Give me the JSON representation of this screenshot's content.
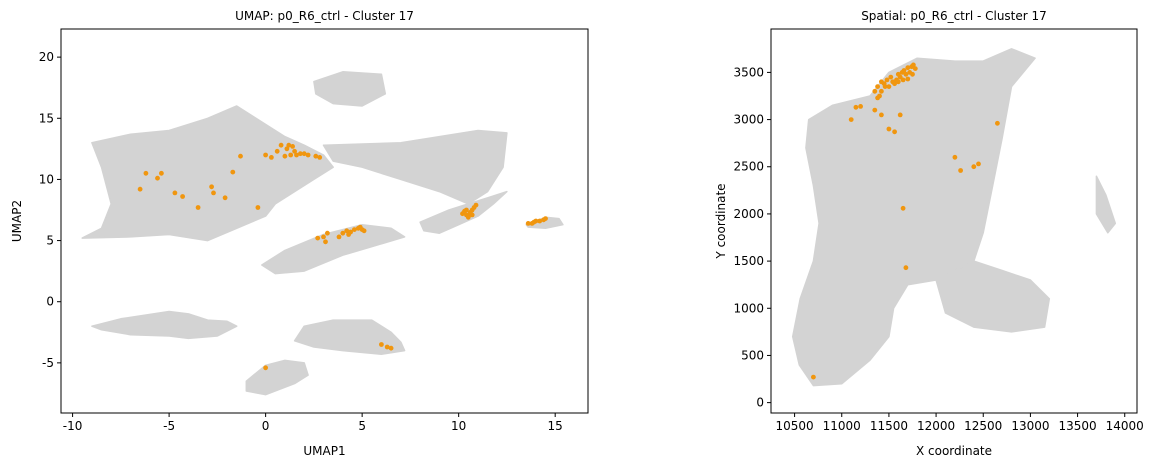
{
  "colors": {
    "background_cells": "#d3d3d3",
    "cluster_cells": "#f0960f",
    "axis": "#000000"
  },
  "chart_data": [
    {
      "type": "scatter",
      "title": "UMAP: p0_R6_ctrl - Cluster 17",
      "xlabel": "UMAP1",
      "ylabel": "UMAP2",
      "xlim": [
        -10.6,
        16.7
      ],
      "ylim": [
        -9.1,
        22.3
      ],
      "xticks": [
        -10,
        -5,
        0,
        5,
        10,
        15
      ],
      "yticks": [
        -5,
        0,
        5,
        10,
        15,
        20
      ],
      "background_regions": [
        {
          "name": "main-mass",
          "polygon": [
            [
              -9.5,
              5.2
            ],
            [
              -8.5,
              6
            ],
            [
              -8,
              8
            ],
            [
              -8.5,
              11
            ],
            [
              -9,
              13
            ],
            [
              -7,
              13.7
            ],
            [
              -5,
              14
            ],
            [
              -3,
              15
            ],
            [
              -1.5,
              16
            ],
            [
              0,
              14.5
            ],
            [
              1,
              13.5
            ],
            [
              2,
              12.8
            ],
            [
              3,
              12
            ],
            [
              3.5,
              11
            ],
            [
              2.5,
              10
            ],
            [
              1.5,
              9
            ],
            [
              0.5,
              8
            ],
            [
              0,
              7
            ],
            [
              -1.5,
              6
            ],
            [
              -3,
              5
            ],
            [
              -5,
              5.5
            ],
            [
              -7,
              5.3
            ]
          ]
        },
        {
          "name": "right-bridge",
          "polygon": [
            [
              3,
              12.8
            ],
            [
              5,
              12.9
            ],
            [
              7,
              13
            ],
            [
              9,
              13.5
            ],
            [
              11,
              14
            ],
            [
              12.5,
              13.8
            ],
            [
              12.3,
              11
            ],
            [
              11.5,
              9
            ],
            [
              10.5,
              8
            ],
            [
              9,
              9
            ],
            [
              7,
              10
            ],
            [
              5,
              11
            ],
            [
              3.5,
              11.5
            ]
          ]
        },
        {
          "name": "top-blob",
          "polygon": [
            [
              2.5,
              18
            ],
            [
              4,
              18.8
            ],
            [
              6,
              18.6
            ],
            [
              6.2,
              17
            ],
            [
              5,
              16
            ],
            [
              3.5,
              16.2
            ],
            [
              2.6,
              17
            ]
          ]
        },
        {
          "name": "mid-blob",
          "polygon": [
            [
              -0.2,
              3
            ],
            [
              1,
              4.2
            ],
            [
              3,
              5.5
            ],
            [
              5,
              6.3
            ],
            [
              6.5,
              6
            ],
            [
              7.2,
              5.3
            ],
            [
              5.5,
              4.5
            ],
            [
              4,
              3.8
            ],
            [
              2,
              2.5
            ],
            [
              0.5,
              2.3
            ]
          ]
        },
        {
          "name": "right-tail",
          "polygon": [
            [
              8,
              6.5
            ],
            [
              9.5,
              7.5
            ],
            [
              10.5,
              8
            ],
            [
              11.5,
              8.5
            ],
            [
              12.5,
              9
            ],
            [
              11.8,
              8
            ],
            [
              11,
              7
            ],
            [
              10,
              6.3
            ],
            [
              9,
              5.6
            ],
            [
              8.2,
              5.8
            ]
          ]
        },
        {
          "name": "far-right",
          "polygon": [
            [
              13.5,
              6.3
            ],
            [
              14.5,
              6.9
            ],
            [
              15.2,
              6.8
            ],
            [
              15.4,
              6.3
            ],
            [
              14.5,
              6
            ],
            [
              13.6,
              6.1
            ]
          ]
        },
        {
          "name": "bottom-left",
          "polygon": [
            [
              -9,
              -2
            ],
            [
              -7.5,
              -1.4
            ],
            [
              -5,
              -0.8
            ],
            [
              -4,
              -1
            ],
            [
              -3,
              -1.5
            ],
            [
              -2,
              -1.6
            ],
            [
              -1.5,
              -2
            ],
            [
              -2.5,
              -2.8
            ],
            [
              -4,
              -3
            ],
            [
              -5,
              -2.8
            ],
            [
              -7,
              -2.7
            ],
            [
              -8.5,
              -2.3
            ]
          ]
        },
        {
          "name": "bottom-mid",
          "polygon": [
            [
              1.5,
              -3.2
            ],
            [
              2,
              -2
            ],
            [
              3.5,
              -1.5
            ],
            [
              5.5,
              -1.5
            ],
            [
              6.5,
              -2.5
            ],
            [
              7,
              -3.3
            ],
            [
              7.2,
              -4
            ],
            [
              6,
              -4.3
            ],
            [
              4,
              -4
            ],
            [
              2.5,
              -3.7
            ]
          ]
        },
        {
          "name": "bottom-small",
          "polygon": [
            [
              -1,
              -6.5
            ],
            [
              0,
              -5.2
            ],
            [
              1,
              -4.8
            ],
            [
              2,
              -5
            ],
            [
              2.2,
              -6
            ],
            [
              1.5,
              -6.7
            ],
            [
              0,
              -7.6
            ],
            [
              -1,
              -7.3
            ]
          ]
        }
      ],
      "series": [
        {
          "points": [
            [
              -6.5,
              9.2
            ],
            [
              -6.2,
              10.5
            ],
            [
              -5.6,
              10.1
            ],
            [
              -5.4,
              10.5
            ],
            [
              -4.7,
              8.9
            ],
            [
              -4.3,
              8.6
            ],
            [
              -3.5,
              7.7
            ],
            [
              -2.8,
              9.4
            ],
            [
              -2.7,
              8.9
            ],
            [
              -2.1,
              8.5
            ],
            [
              -1.7,
              10.6
            ],
            [
              -1.3,
              11.9
            ],
            [
              -0.4,
              7.7
            ],
            [
              0,
              -5.4
            ],
            [
              0,
              12
            ],
            [
              0.3,
              11.8
            ],
            [
              0.6,
              12.3
            ],
            [
              0.8,
              12.8
            ],
            [
              1,
              11.9
            ],
            [
              1.1,
              12.5
            ],
            [
              1.3,
              12.0
            ],
            [
              1.5,
              12.3
            ],
            [
              1.6,
              12.0
            ],
            [
              1.8,
              12.1
            ],
            [
              2.0,
              12.1
            ],
            [
              2.2,
              12.0
            ],
            [
              2.6,
              11.9
            ],
            [
              2.8,
              11.8
            ],
            [
              1.2,
              12.8
            ],
            [
              1.4,
              12.7
            ],
            [
              2.7,
              5.2
            ],
            [
              3.0,
              5.3
            ],
            [
              3.1,
              4.9
            ],
            [
              3.2,
              5.6
            ],
            [
              3.8,
              5.3
            ],
            [
              4.0,
              5.6
            ],
            [
              4.2,
              5.8
            ],
            [
              4.4,
              5.7
            ],
            [
              4.6,
              5.9
            ],
            [
              4.8,
              6.0
            ],
            [
              5.0,
              5.9
            ],
            [
              5.1,
              5.8
            ],
            [
              4.3,
              5.5
            ],
            [
              4.9,
              6.1
            ],
            [
              10.2,
              7.2
            ],
            [
              10.3,
              7.4
            ],
            [
              10.4,
              7.1
            ],
            [
              10.5,
              7.0
            ],
            [
              10.6,
              7.3
            ],
            [
              10.7,
              7.5
            ],
            [
              10.8,
              7.7
            ],
            [
              10.9,
              7.9
            ],
            [
              10.4,
              7.5
            ],
            [
              10.6,
              7.2
            ],
            [
              10.5,
              6.9
            ],
            [
              10.7,
              7.1
            ],
            [
              13.6,
              6.4
            ],
            [
              13.8,
              6.4
            ],
            [
              14.0,
              6.6
            ],
            [
              14.2,
              6.6
            ],
            [
              14.4,
              6.7
            ],
            [
              14.5,
              6.8
            ],
            [
              13.9,
              6.5
            ],
            [
              6.0,
              -3.5
            ],
            [
              6.3,
              -3.7
            ],
            [
              6.5,
              -3.8
            ]
          ]
        }
      ]
    },
    {
      "type": "scatter",
      "title": "Spatial: p0_R6_ctrl - Cluster 17",
      "xlabel": "X coordinate",
      "ylabel": "Y coordinate",
      "xlim": [
        10250,
        14130
      ],
      "ylim": [
        -110,
        3960
      ],
      "xticks": [
        10500,
        11000,
        11500,
        12000,
        12500,
        13000,
        13500,
        14000
      ],
      "yticks": [
        0,
        500,
        1000,
        1500,
        2000,
        2500,
        3000,
        3500
      ],
      "background_regions": [
        {
          "name": "tissue-main",
          "polygon": [
            [
              10700,
              180
            ],
            [
              10550,
              400
            ],
            [
              10480,
              700
            ],
            [
              10560,
              1100
            ],
            [
              10700,
              1500
            ],
            [
              10760,
              1900
            ],
            [
              10700,
              2300
            ],
            [
              10620,
              2700
            ],
            [
              10650,
              3000
            ],
            [
              10900,
              3150
            ],
            [
              11300,
              3250
            ],
            [
              11500,
              3500
            ],
            [
              11800,
              3650
            ],
            [
              12200,
              3620
            ],
            [
              12500,
              3620
            ],
            [
              12800,
              3750
            ],
            [
              13050,
              3650
            ],
            [
              12800,
              3350
            ],
            [
              12700,
              2800
            ],
            [
              12600,
              2300
            ],
            [
              12500,
              1800
            ],
            [
              12400,
              1500
            ],
            [
              12000,
              1300
            ],
            [
              11700,
              1250
            ],
            [
              11550,
              1000
            ],
            [
              11500,
              700
            ],
            [
              11300,
              450
            ],
            [
              11000,
              200
            ]
          ]
        },
        {
          "name": "tissue-lower-right",
          "polygon": [
            [
              12400,
              1500
            ],
            [
              12700,
              1400
            ],
            [
              13000,
              1300
            ],
            [
              13200,
              1100
            ],
            [
              13150,
              800
            ],
            [
              12800,
              750
            ],
            [
              12400,
              800
            ],
            [
              12100,
              950
            ],
            [
              12000,
              1300
            ]
          ]
        },
        {
          "name": "tissue-right-tail",
          "polygon": [
            [
              13700,
              2400
            ],
            [
              13800,
              2200
            ],
            [
              13900,
              1900
            ],
            [
              13820,
              1800
            ],
            [
              13700,
              2000
            ]
          ]
        }
      ],
      "series": [
        {
          "points": [
            [
              11350,
              3300
            ],
            [
              11380,
              3350
            ],
            [
              11400,
              3250
            ],
            [
              11420,
              3400
            ],
            [
              11450,
              3380
            ],
            [
              11480,
              3420
            ],
            [
              11500,
              3350
            ],
            [
              11520,
              3450
            ],
            [
              11540,
              3400
            ],
            [
              11560,
              3380
            ],
            [
              11580,
              3420
            ],
            [
              11600,
              3400
            ],
            [
              11620,
              3450
            ],
            [
              11640,
              3500
            ],
            [
              11660,
              3520
            ],
            [
              11680,
              3480
            ],
            [
              11700,
              3550
            ],
            [
              11720,
              3500
            ],
            [
              11740,
              3560
            ],
            [
              11760,
              3580
            ],
            [
              11780,
              3540
            ],
            [
              11380,
              3230
            ],
            [
              11420,
              3300
            ],
            [
              11460,
              3350
            ],
            [
              11600,
              3480
            ],
            [
              11650,
              3420
            ],
            [
              11700,
              3430
            ],
            [
              11750,
              3480
            ],
            [
              11150,
              3130
            ],
            [
              11200,
              3140
            ],
            [
              11100,
              3000
            ],
            [
              11350,
              3100
            ],
            [
              11420,
              3050
            ],
            [
              11500,
              2900
            ],
            [
              11560,
              2870
            ],
            [
              11620,
              3050
            ],
            [
              12200,
              2600
            ],
            [
              12260,
              2460
            ],
            [
              12400,
              2500
            ],
            [
              12450,
              2530
            ],
            [
              12650,
              2960
            ],
            [
              11650,
              2060
            ],
            [
              11680,
              1430
            ],
            [
              10700,
              270
            ]
          ]
        }
      ]
    }
  ]
}
